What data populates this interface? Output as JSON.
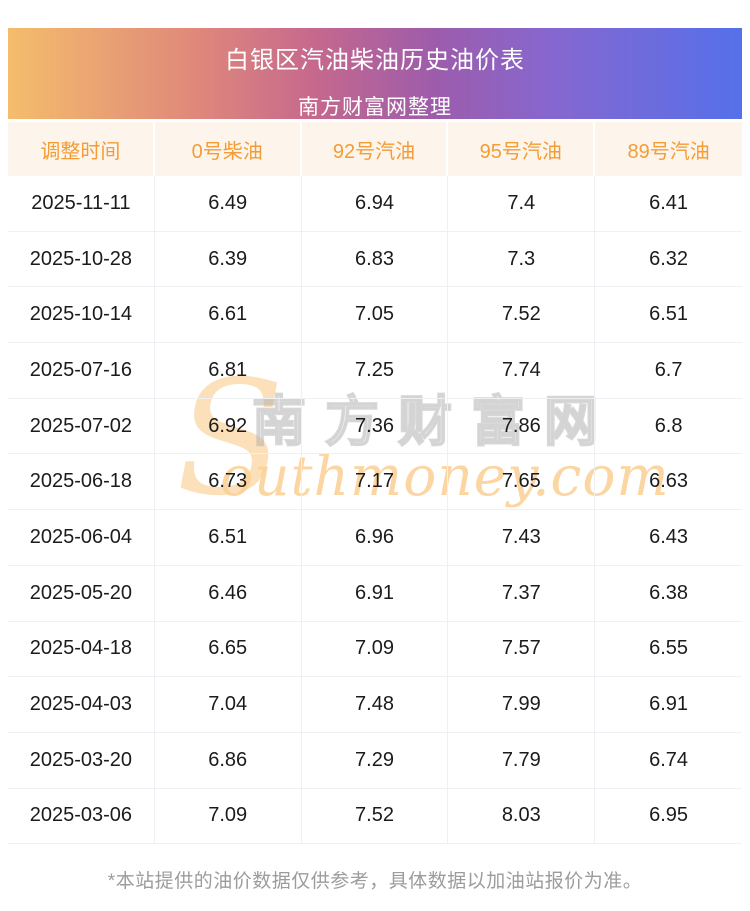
{
  "banner": {
    "title": "白银区汽油柴油历史油价表",
    "subtitle": "南方财富网整理"
  },
  "chart_data": {
    "type": "table",
    "title": "白银区汽油柴油历史油价表",
    "subtitle": "南方财富网整理",
    "columns": [
      "调整时间",
      "0号柴油",
      "92号汽油",
      "95号汽油",
      "89号汽油"
    ],
    "rows": [
      [
        "2025-11-11",
        "6.49",
        "6.94",
        "7.4",
        "6.41"
      ],
      [
        "2025-10-28",
        "6.39",
        "6.83",
        "7.3",
        "6.32"
      ],
      [
        "2025-10-14",
        "6.61",
        "7.05",
        "7.52",
        "6.51"
      ],
      [
        "2025-07-16",
        "6.81",
        "7.25",
        "7.74",
        "6.7"
      ],
      [
        "2025-07-02",
        "6.92",
        "7.36",
        "7.86",
        "6.8"
      ],
      [
        "2025-06-18",
        "6.73",
        "7.17",
        "7.65",
        "6.63"
      ],
      [
        "2025-06-04",
        "6.51",
        "6.96",
        "7.43",
        "6.43"
      ],
      [
        "2025-05-20",
        "6.46",
        "6.91",
        "7.37",
        "6.38"
      ],
      [
        "2025-04-18",
        "6.65",
        "7.09",
        "7.57",
        "6.55"
      ],
      [
        "2025-04-03",
        "7.04",
        "7.48",
        "7.99",
        "6.91"
      ],
      [
        "2025-03-20",
        "6.86",
        "7.29",
        "7.79",
        "6.74"
      ],
      [
        "2025-03-06",
        "7.09",
        "7.52",
        "8.03",
        "6.95"
      ]
    ]
  },
  "watermark": {
    "s_glyph": "S",
    "cn": "南方财富网",
    "en": "outhmoney.com"
  },
  "footer": {
    "note": "*本站提供的油价数据仅供参考，具体数据以加油站报价为准。"
  },
  "colors": {
    "banner_gradient_start": "#f4bd6c",
    "banner_gradient_mid": "#9d5cab",
    "banner_gradient_end": "#5570ea",
    "header_row_bg": "#fdf5ec",
    "header_text_orange": "#f49c35",
    "cell_text": "#1b1b1b",
    "grid_line": "#eef0f4",
    "footer_gray": "#9c9c9c",
    "watermark_orange": "#fcd9a8",
    "watermark_gray": "#cccccc"
  }
}
